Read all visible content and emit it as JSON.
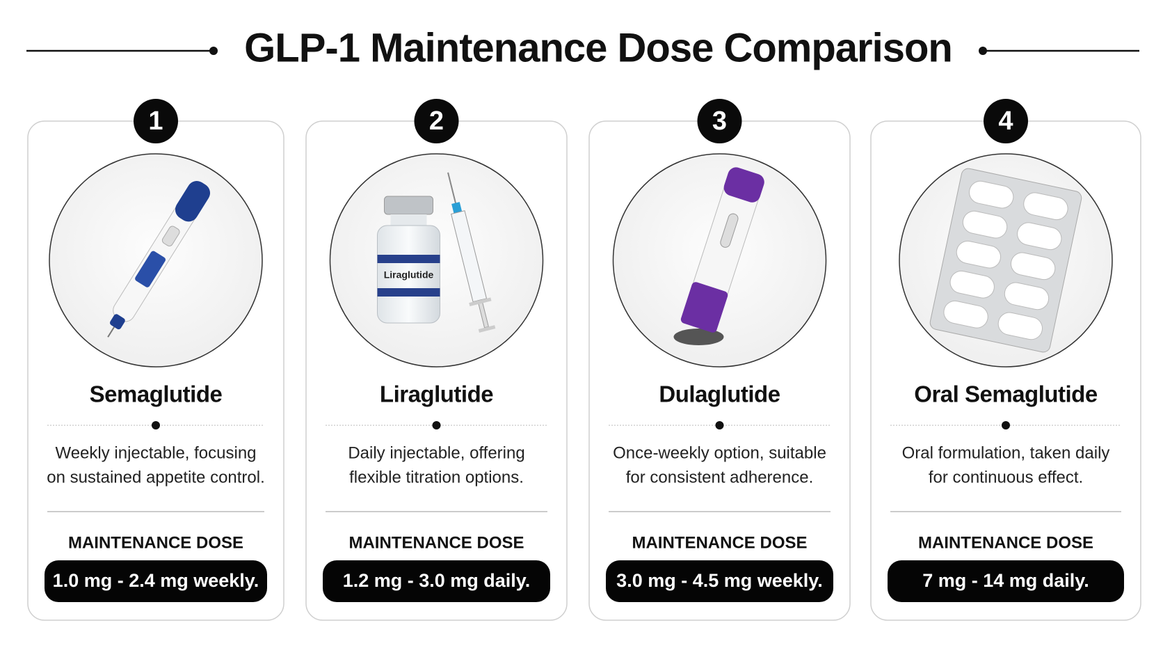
{
  "header": {
    "title": "GLP-1 Maintenance Dose Comparison"
  },
  "cards": [
    {
      "number": "1",
      "name": "Semaglutide",
      "description": [
        "Weekly injectable, focusing",
        "on sustained appetite control."
      ],
      "dose_label": "MAINTENANCE DOSE",
      "dose": "1.0 mg - 2.4 mg weekly."
    },
    {
      "number": "2",
      "name": "Liraglutide",
      "image_label": "Liraglutide",
      "description": [
        "Daily injectable, offering",
        "flexible titration options."
      ],
      "dose_label": "MAINTENANCE DOSE",
      "dose": "1.2 mg - 3.0 mg daily."
    },
    {
      "number": "3",
      "name": "Dulaglutide",
      "description": [
        "Once-weekly option, suitable",
        "for consistent adherence."
      ],
      "dose_label": "MAINTENANCE DOSE",
      "dose": "3.0 mg - 4.5 mg weekly."
    },
    {
      "number": "4",
      "name": "Oral Semaglutide",
      "description": [
        "Oral formulation, taken daily",
        "for continuous effect."
      ],
      "dose_label": "MAINTENANCE DOSE",
      "dose": "7 mg - 14 mg daily."
    }
  ]
}
